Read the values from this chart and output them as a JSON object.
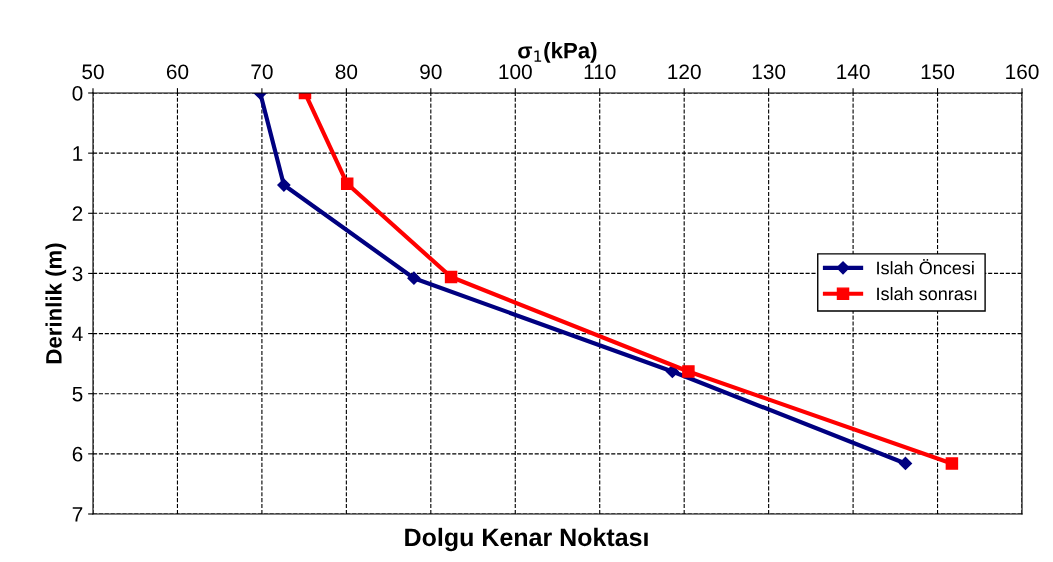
{
  "chart_data": {
    "type": "line",
    "title": "Dolgu Kenar Noktası",
    "xlabel": "σ$_{1}$(kPa)",
    "ylabel": "Derinlik (m)",
    "xlim": [
      50,
      160
    ],
    "xticks": [
      50,
      60,
      70,
      80,
      90,
      100,
      110,
      120,
      130,
      140,
      150,
      160
    ],
    "ylim": [
      7,
      0
    ],
    "yticks": [
      0,
      1,
      2,
      3,
      4,
      5,
      6,
      7
    ],
    "grid": true,
    "legend": "right",
    "series": [
      {
        "name": "Islah Öncesi",
        "color": "#000080",
        "marker": "diamond",
        "x": [
          69.8,
          72.6,
          88.0,
          118.6,
          146.2
        ],
        "values": [
          0,
          1.53,
          3.08,
          4.63,
          6.16
        ]
      },
      {
        "name": "Islah sonrası",
        "color": "#ff0000",
        "marker": "square",
        "x": [
          75.1,
          80.1,
          92.4,
          120.5,
          151.7
        ],
        "values": [
          0,
          1.51,
          3.06,
          4.63,
          6.16
        ]
      }
    ]
  }
}
